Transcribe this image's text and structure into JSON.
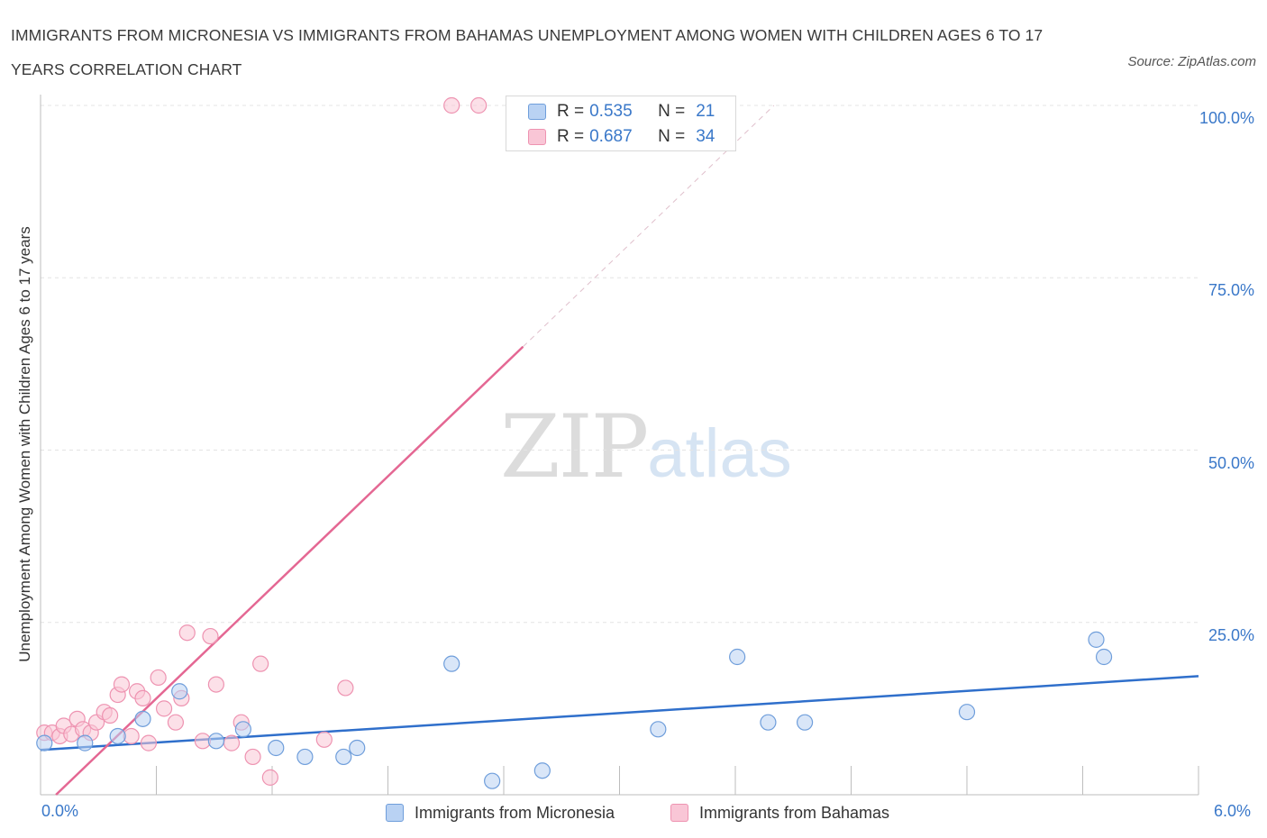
{
  "title": "IMMIGRANTS FROM MICRONESIA VS IMMIGRANTS FROM BAHAMAS UNEMPLOYMENT AMONG WOMEN WITH CHILDREN AGES 6 TO 17 YEARS CORRELATION CHART",
  "source": "Source: ZipAtlas.com",
  "watermark": {
    "zip": "ZIP",
    "atlas": "atlas"
  },
  "legend": {
    "r_label": "R =",
    "n_label": "N =",
    "rows": [
      {
        "r": "0.535",
        "n": "21"
      },
      {
        "r": "0.687",
        "n": "34"
      }
    ]
  },
  "colors": {
    "micronesia_fill": "#b9d2f3",
    "micronesia_stroke": "#6f9edb",
    "micronesia_line": "#2f6fcb",
    "bahamas_fill": "#f9c6d6",
    "bahamas_stroke": "#ee93b1",
    "bahamas_line": "#e46793",
    "axis_text": "#3a78c9",
    "grid": "#e4e4e4"
  },
  "chart_data": {
    "type": "scatter",
    "title": "IMMIGRANTS FROM MICRONESIA VS IMMIGRANTS FROM BAHAMAS UNEMPLOYMENT AMONG WOMEN WITH CHILDREN AGES 6 TO 17 YEARS CORRELATION CHART",
    "xlabel": "",
    "ylabel": "Unemployment Among Women with Children Ages 6 to 17 years",
    "xlim": [
      0,
      6
    ],
    "ylim": [
      0,
      100
    ],
    "x_tick_labels": [
      "0.0%",
      "6.0%"
    ],
    "y_ticks": [
      25,
      50,
      75,
      100
    ],
    "y_tick_labels": [
      "25.0%",
      "50.0%",
      "75.0%",
      "100.0%"
    ],
    "grid": true,
    "legend_position": "top-center",
    "series": [
      {
        "name": "Immigrants from Micronesia",
        "color": "#6f9edb",
        "points": [
          [
            0.02,
            7.5
          ],
          [
            0.23,
            7.5
          ],
          [
            0.4,
            8.5
          ],
          [
            0.53,
            11.0
          ],
          [
            0.72,
            15.0
          ],
          [
            0.91,
            7.8
          ],
          [
            1.05,
            9.5
          ],
          [
            1.22,
            6.8
          ],
          [
            1.37,
            5.5
          ],
          [
            1.57,
            5.5
          ],
          [
            1.64,
            6.8
          ],
          [
            2.13,
            19.0
          ],
          [
            2.34,
            2.0
          ],
          [
            2.6,
            3.5
          ],
          [
            3.2,
            9.5
          ],
          [
            3.61,
            20.0
          ],
          [
            3.77,
            10.5
          ],
          [
            3.96,
            10.5
          ],
          [
            4.8,
            12.0
          ],
          [
            5.47,
            22.5
          ],
          [
            5.51,
            20.0
          ]
        ],
        "trend": {
          "x": [
            0,
            6
          ],
          "y": [
            6.5,
            17.2
          ]
        }
      },
      {
        "name": "Immigrants from Bahamas",
        "color": "#ee93b1",
        "points": [
          [
            0.02,
            9.0
          ],
          [
            0.06,
            9.0
          ],
          [
            0.1,
            8.5
          ],
          [
            0.12,
            10.0
          ],
          [
            0.16,
            8.8
          ],
          [
            0.19,
            11.0
          ],
          [
            0.22,
            9.5
          ],
          [
            0.26,
            9.0
          ],
          [
            0.29,
            10.5
          ],
          [
            0.33,
            12.0
          ],
          [
            0.36,
            11.5
          ],
          [
            0.4,
            14.5
          ],
          [
            0.42,
            16.0
          ],
          [
            0.47,
            8.5
          ],
          [
            0.5,
            15.0
          ],
          [
            0.53,
            14.0
          ],
          [
            0.56,
            7.5
          ],
          [
            0.61,
            17.0
          ],
          [
            0.64,
            12.5
          ],
          [
            0.7,
            10.5
          ],
          [
            0.73,
            14.0
          ],
          [
            0.76,
            23.5
          ],
          [
            0.84,
            7.8
          ],
          [
            0.88,
            23.0
          ],
          [
            0.91,
            16.0
          ],
          [
            0.99,
            7.5
          ],
          [
            1.04,
            10.5
          ],
          [
            1.1,
            5.5
          ],
          [
            1.14,
            19.0
          ],
          [
            1.19,
            2.5
          ],
          [
            1.47,
            8.0
          ],
          [
            1.58,
            15.5
          ],
          [
            2.13,
            100.0
          ],
          [
            2.27,
            100.0
          ]
        ],
        "trend": {
          "x": [
            0.08,
            2.5
          ],
          "y": [
            0.0,
            65.0
          ]
        },
        "trend_extension": {
          "x": [
            2.5,
            3.8
          ],
          "y": [
            65.0,
            100.0
          ]
        }
      }
    ]
  }
}
